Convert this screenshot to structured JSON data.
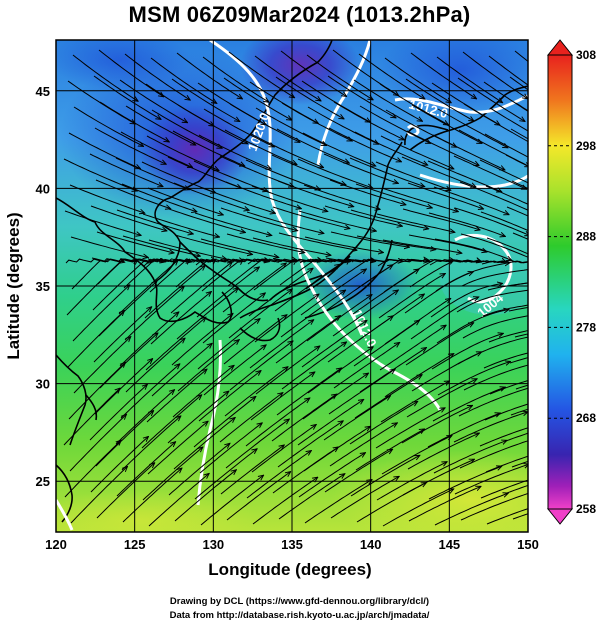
{
  "title": "MSM 06Z09Mar2024 (1013.2hPa)",
  "xaxis": {
    "label": "Longitude (degrees)",
    "ticks": [
      "120",
      "125",
      "130",
      "135",
      "140",
      "145",
      "150"
    ],
    "range": [
      120,
      150
    ]
  },
  "yaxis": {
    "label": "Latitude  (degrees)",
    "ticks": [
      "25",
      "30",
      "35",
      "40",
      "45"
    ],
    "range": [
      22.4,
      47.6
    ]
  },
  "colorbar": {
    "ticks": [
      "308",
      "298",
      "288",
      "278",
      "268",
      "258"
    ],
    "range": [
      258,
      308
    ]
  },
  "contours": [
    "1020.0",
    "1012.0",
    "1012.0",
    "1004",
    "1012.0"
  ],
  "credits": {
    "line1": "Drawing by DCL (https://www.gfd-dennou.org/library/dcl/)",
    "line2": "Data from http://database.rish.kyoto-u.ac.jp/arch/jmadata/"
  }
}
